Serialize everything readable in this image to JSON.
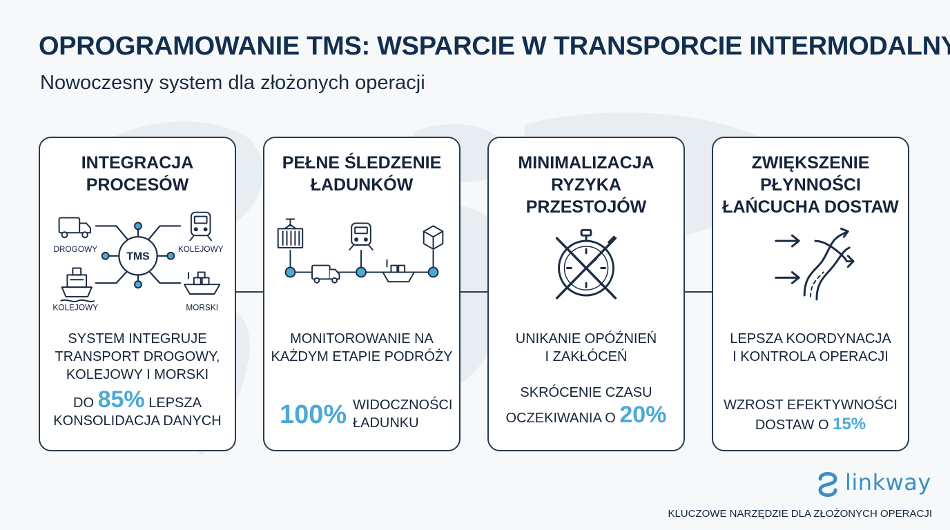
{
  "header": {
    "title": "OPROGRAMOWANIE TMS: WSPARCIE W TRANSPORCIE INTERMODALNYM",
    "subtitle": "Nowoczesny system dla złożonych operacji"
  },
  "cards": [
    {
      "title_lines": [
        "INTEGRACJA",
        "PROCESÓW"
      ],
      "hub_label": "TMS",
      "mode_labels": [
        "DROGOWY",
        "KOLEJOWY",
        "KOLEJOWY",
        "MORSKI"
      ],
      "description_lines": [
        "SYSTEM INTEGRUJE",
        "TRANSPORT DROGOWY,",
        "KOLEJOWY I MORSKI"
      ],
      "stat_prefix": "DO",
      "stat_value": "85%",
      "stat_suffix": "LEPSZA",
      "stat_line2": "KONSOLIDACJA DANYCH",
      "icons": [
        "truck-icon",
        "train-icon",
        "ship-icon",
        "cargo-ship-icon"
      ]
    },
    {
      "title_lines": [
        "PEŁNE ŚLEDZENIE",
        "ŁADUNKÓW"
      ],
      "description_lines": [
        "MONITOROWANIE NA",
        "KAŻDYM ETAPIE PODRÓŻY"
      ],
      "stat_value": "100%",
      "stat_text_lines": [
        "WIDOCZNOŚCI",
        "ŁADUNKU"
      ],
      "icons": [
        "container-crane-icon",
        "truck-icon",
        "train-icon",
        "ship-icon",
        "package-icon"
      ]
    },
    {
      "title_lines": [
        "MINIMALIZACJA",
        "RYZYKA",
        "PRZESTOJÓW"
      ],
      "description_lines": [
        "UNIKANIE OPÓŹNIEŃ",
        "I ZAKŁÓCEŃ"
      ],
      "stat_line1": "SKRÓCENIE CZASU",
      "stat_line2_prefix": "OCZEKIWANIA O",
      "stat_value": "20%",
      "icons": [
        "crossed-stopwatch-icon"
      ]
    },
    {
      "title_lines": [
        "ZWIĘKSZENIE",
        "PŁYNNOŚCI",
        "ŁAŃCUCHA DOSTAW"
      ],
      "description_lines": [
        "LEPSZA KOORDYNACJA",
        "I KONTROLA OPERACJI"
      ],
      "stat_line1": "WZROST EFEKTYWNOŚCI",
      "stat_line2_prefix": "DOSTAW O",
      "stat_value": "15%",
      "icons": [
        "flow-arrows-icon"
      ]
    }
  ],
  "brand": {
    "name": "linkway",
    "accent": "#4aa9d6",
    "logo_icon": "link-wave-icon"
  },
  "footer": {
    "tagline": "KLUCZOWE NARZĘDZIE DLA ZŁOŻONYCH OPERACJI"
  },
  "colors": {
    "navy": "#132f4f",
    "accent": "#4aa9d6",
    "border": "#2a3a50"
  }
}
